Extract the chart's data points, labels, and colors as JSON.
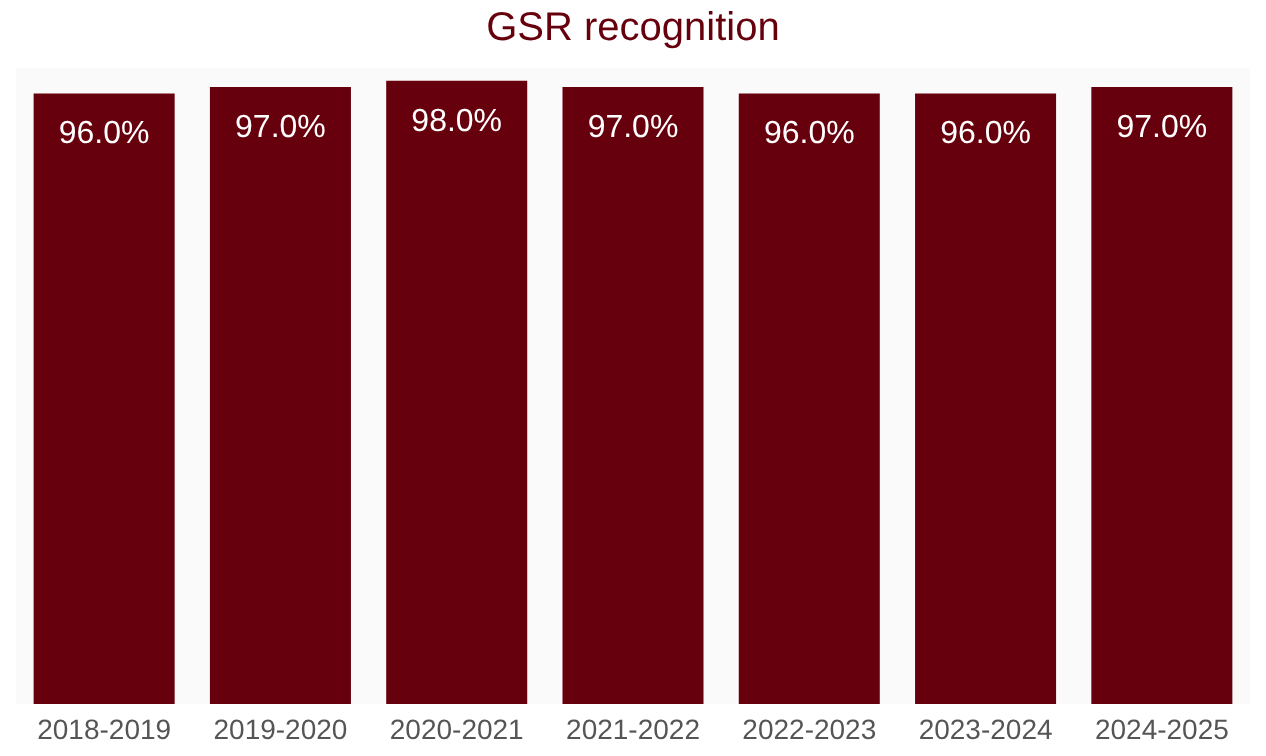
{
  "chart_data": {
    "type": "bar",
    "title": "GSR recognition",
    "categories": [
      "2018-2019",
      "2019-2020",
      "2020-2021",
      "2021-2022",
      "2022-2023",
      "2023-2024",
      "2024-2025"
    ],
    "values": [
      96.0,
      97.0,
      98.0,
      97.0,
      96.0,
      96.0,
      97.0
    ],
    "value_labels": [
      "96.0%",
      "97.0%",
      "98.0%",
      "97.0%",
      "96.0%",
      "96.0%",
      "97.0%"
    ],
    "color": "#67000d",
    "grid": false,
    "tick_labels": "x"
  }
}
